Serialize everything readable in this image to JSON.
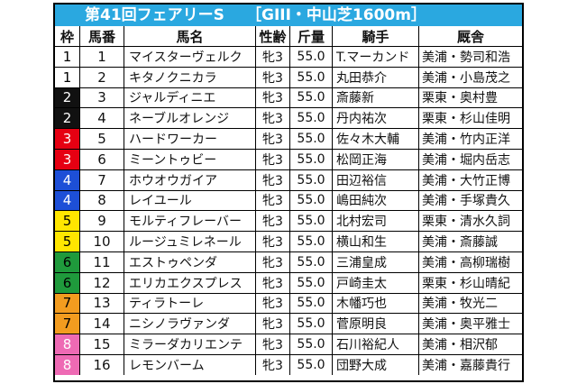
{
  "title": {
    "main": "第41回フェアリーS",
    "sub": "［GIII・中山芝1600m］",
    "color": "#2aa8e0"
  },
  "headers": {
    "waku": "枠",
    "uma": "馬番",
    "name": "馬名",
    "sex_age": "性齢",
    "weight": "斤量",
    "jockey": "騎手",
    "trainer": "厩舎"
  },
  "waku_colors": {
    "1": {
      "bg": "#ffffff",
      "fg": "#000000"
    },
    "2": {
      "bg": "#111111",
      "fg": "#ffffff"
    },
    "3": {
      "bg": "#e60012",
      "fg": "#ffffff"
    },
    "4": {
      "bg": "#1d4fd7",
      "fg": "#ffffff"
    },
    "5": {
      "bg": "#ffe600",
      "fg": "#000000"
    },
    "6": {
      "bg": "#1f9a3c",
      "fg": "#000000"
    },
    "7": {
      "bg": "#f39c1f",
      "fg": "#000000"
    },
    "8": {
      "bg": "#ee6ab4",
      "fg": "#ffffff"
    }
  },
  "rows": [
    {
      "waku": "1",
      "uma": "1",
      "name": "マイスターヴェルク",
      "sex_age": "牝3",
      "weight": "55.0",
      "jockey": "T.マーカンド",
      "trainer": "美浦・勢司和浩"
    },
    {
      "waku": "1",
      "uma": "2",
      "name": "キタノクニカラ",
      "sex_age": "牝3",
      "weight": "55.0",
      "jockey": "丸田恭介",
      "trainer": "美浦・小島茂之"
    },
    {
      "waku": "2",
      "uma": "3",
      "name": "ジャルディニエ",
      "sex_age": "牝3",
      "weight": "55.0",
      "jockey": "斎藤新",
      "trainer": "栗東・奥村豊"
    },
    {
      "waku": "2",
      "uma": "4",
      "name": "ネーブルオレンジ",
      "sex_age": "牝3",
      "weight": "55.0",
      "jockey": "丹内祐次",
      "trainer": "栗東・杉山佳明"
    },
    {
      "waku": "3",
      "uma": "5",
      "name": "ハードワーカー",
      "sex_age": "牝3",
      "weight": "55.0",
      "jockey": "佐々木大輔",
      "trainer": "美浦・竹内正洋"
    },
    {
      "waku": "3",
      "uma": "6",
      "name": "ミーントゥビー",
      "sex_age": "牝3",
      "weight": "55.0",
      "jockey": "松岡正海",
      "trainer": "美浦・堀内岳志"
    },
    {
      "waku": "4",
      "uma": "7",
      "name": "ホウオウガイア",
      "sex_age": "牝3",
      "weight": "55.0",
      "jockey": "田辺裕信",
      "trainer": "美浦・大竹正博"
    },
    {
      "waku": "4",
      "uma": "8",
      "name": "レイユール",
      "sex_age": "牝3",
      "weight": "55.0",
      "jockey": "嶋田純次",
      "trainer": "美浦・手塚貴久"
    },
    {
      "waku": "5",
      "uma": "9",
      "name": "モルティフレーバー",
      "sex_age": "牝3",
      "weight": "55.0",
      "jockey": "北村宏司",
      "trainer": "栗東・清水久詞"
    },
    {
      "waku": "5",
      "uma": "10",
      "name": "ルージュミレネール",
      "sex_age": "牝3",
      "weight": "55.0",
      "jockey": "横山和生",
      "trainer": "美浦・斎藤誠"
    },
    {
      "waku": "6",
      "uma": "11",
      "name": "エストゥペンダ",
      "sex_age": "牝3",
      "weight": "55.0",
      "jockey": "三浦皇成",
      "trainer": "美浦・高柳瑞樹"
    },
    {
      "waku": "6",
      "uma": "12",
      "name": "エリカエクスプレス",
      "sex_age": "牝3",
      "weight": "55.0",
      "jockey": "戸崎圭太",
      "trainer": "栗東・杉山晴紀"
    },
    {
      "waku": "7",
      "uma": "13",
      "name": "ティラトーレ",
      "sex_age": "牝3",
      "weight": "55.0",
      "jockey": "木幡巧也",
      "trainer": "美浦・牧光二"
    },
    {
      "waku": "7",
      "uma": "14",
      "name": "ニシノラヴァンダ",
      "sex_age": "牝3",
      "weight": "55.0",
      "jockey": "菅原明良",
      "trainer": "美浦・奥平雅士"
    },
    {
      "waku": "8",
      "uma": "15",
      "name": "ミラーダカリエンテ",
      "sex_age": "牝3",
      "weight": "55.0",
      "jockey": "石川裕紀人",
      "trainer": "美浦・相沢郁"
    },
    {
      "waku": "8",
      "uma": "16",
      "name": "レモンバーム",
      "sex_age": "牝3",
      "weight": "55.0",
      "jockey": "団野大成",
      "trainer": "美浦・嘉藤貴行"
    }
  ]
}
